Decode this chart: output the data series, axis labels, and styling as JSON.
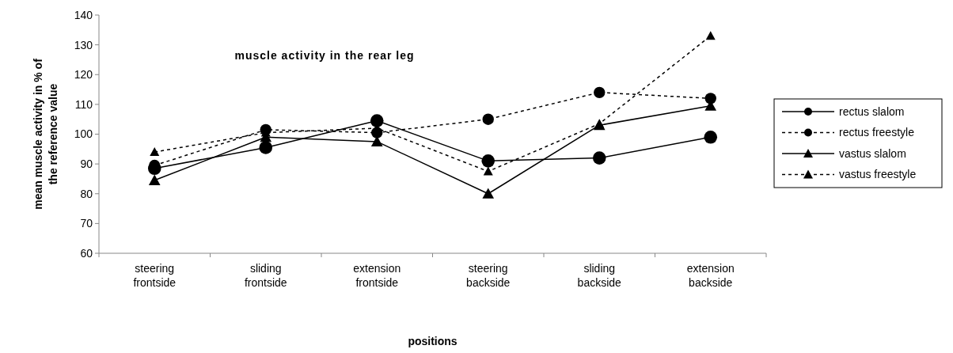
{
  "chart_data": {
    "type": "line",
    "title": "muscle activity in the rear leg",
    "xlabel": "positions",
    "ylabel": "mean muscle activity in % of the reference value",
    "categories": [
      "steering frontside",
      "sliding frontside",
      "extension frontside",
      "steering backside",
      "sliding backside",
      "extension backside"
    ],
    "ylim": [
      60,
      140
    ],
    "yticks": [
      60,
      70,
      80,
      90,
      100,
      110,
      120,
      130,
      140
    ],
    "grid": false,
    "legend": "right",
    "series": [
      {
        "name": "rectus slalom",
        "color": "#000000",
        "marker": "circle",
        "line_style": "solid",
        "values": [
          88.5,
          95.5,
          104.5,
          91,
          92,
          99
        ]
      },
      {
        "name": "rectus freestyle",
        "color": "#000000",
        "marker": "circle",
        "line_style": "dashed",
        "values": [
          89.5,
          101.5,
          100.5,
          105,
          114,
          112
        ]
      },
      {
        "name": "vastus slalom",
        "color": "#000000",
        "marker": "triangle",
        "line_style": "solid",
        "values": [
          84.5,
          99,
          97.5,
          80,
          103,
          109.5
        ]
      },
      {
        "name": "vastus freestyle",
        "color": "#000000",
        "marker": "triangle",
        "line_style": "dashed",
        "values": [
          94,
          100.5,
          102,
          87.5,
          103.5,
          133
        ]
      }
    ]
  }
}
